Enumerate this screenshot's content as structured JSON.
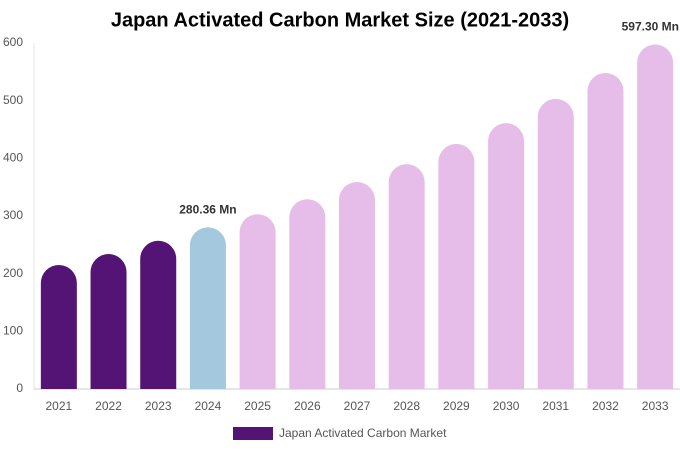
{
  "chart_data": {
    "type": "bar",
    "title": "Japan Activated Carbon Market Size (2021-2033)",
    "categories": [
      "2021",
      "2022",
      "2023",
      "2024",
      "2025",
      "2026",
      "2027",
      "2028",
      "2029",
      "2030",
      "2031",
      "2032",
      "2033"
    ],
    "series": [
      {
        "name": "Japan Activated Carbon Market",
        "color": "#541475",
        "values": [
          215,
          234,
          257,
          280.36,
          303,
          329,
          359,
          390,
          425,
          461,
          503,
          548,
          597.3
        ],
        "value_labels": [
          null,
          null,
          null,
          "280.36 Mn",
          null,
          null,
          null,
          null,
          null,
          null,
          null,
          null,
          "597.30 Mn"
        ],
        "colors": [
          "#541475",
          "#541475",
          "#541475",
          "#a4c9de",
          "#e6bde8",
          "#e6bde8",
          "#e6bde8",
          "#e6bde8",
          "#e6bde8",
          "#e6bde8",
          "#e6bde8",
          "#e6bde8",
          "#e6bde8"
        ]
      }
    ],
    "ylim": [
      0,
      600
    ],
    "yticks": [
      0,
      100,
      200,
      300,
      400,
      500,
      600
    ],
    "grid": false,
    "legend": "bottom"
  }
}
